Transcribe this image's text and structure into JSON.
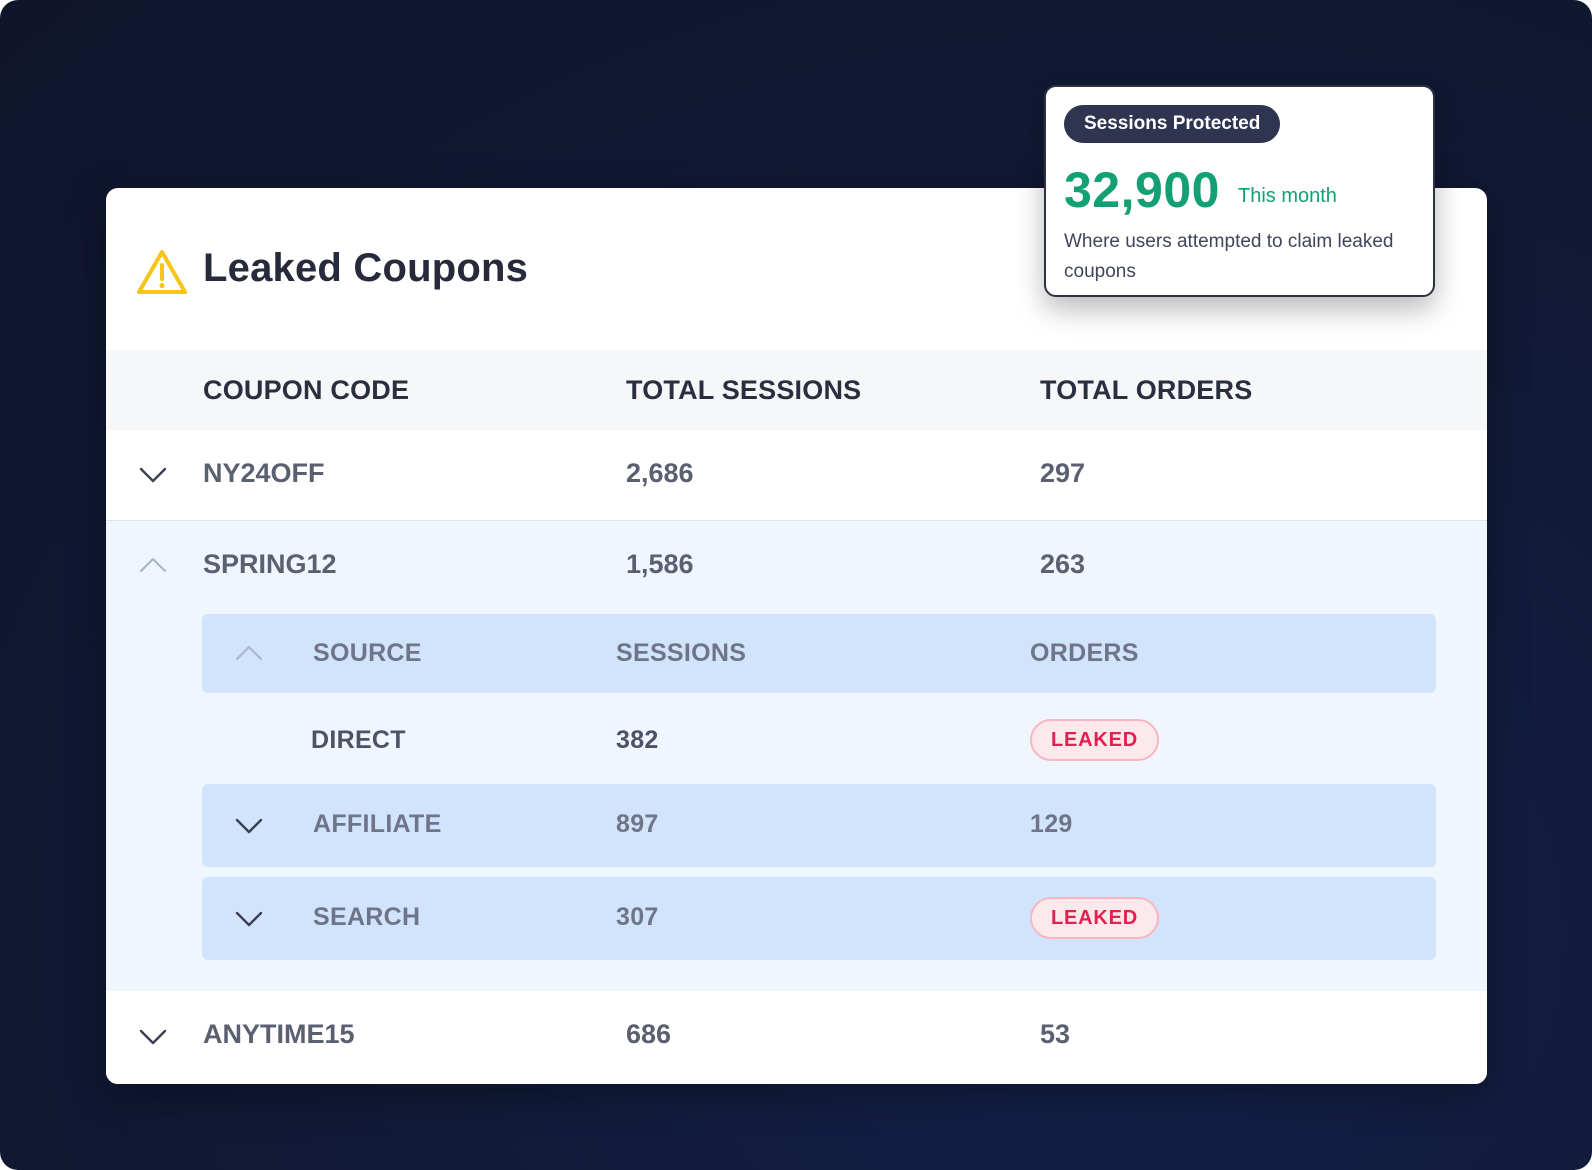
{
  "title": "Leaked Coupons",
  "columns": [
    "COUPON CODE",
    "TOTAL SESSIONS",
    "TOTAL ORDERS"
  ],
  "rows": [
    {
      "code": "NY24OFF",
      "sessions": "2,686",
      "orders": "297",
      "expanded": false
    },
    {
      "code": "SPRING12",
      "sessions": "1,586",
      "orders": "263",
      "expanded": true
    },
    {
      "code": "ANYTIME15",
      "sessions": "686",
      "orders": "53",
      "expanded": false
    }
  ],
  "sub_table": {
    "columns": [
      "SOURCE",
      "SESSIONS",
      "ORDERS"
    ],
    "rows": [
      {
        "source": "DIRECT",
        "sessions": "382",
        "orders": "LEAKED"
      },
      {
        "source": "AFFILIATE",
        "sessions": "897",
        "orders": "129"
      },
      {
        "source": "SEARCH",
        "sessions": "307",
        "orders": "LEAKED"
      }
    ]
  },
  "tooltip": {
    "badge": "Sessions Protected",
    "value": "32,900",
    "period": "This month",
    "description": "Where users attempted to claim leaked coupons"
  },
  "colors": {
    "background": "#111a38",
    "accent_green": "#12a074",
    "leaked_red": "#e02250",
    "warning_yellow": "#f5c518",
    "sub_row_blue": "#d1e4fb"
  },
  "icons": {
    "warning": "warning-triangle-icon",
    "expand": "chevron-down-icon",
    "collapse": "chevron-up-icon"
  }
}
